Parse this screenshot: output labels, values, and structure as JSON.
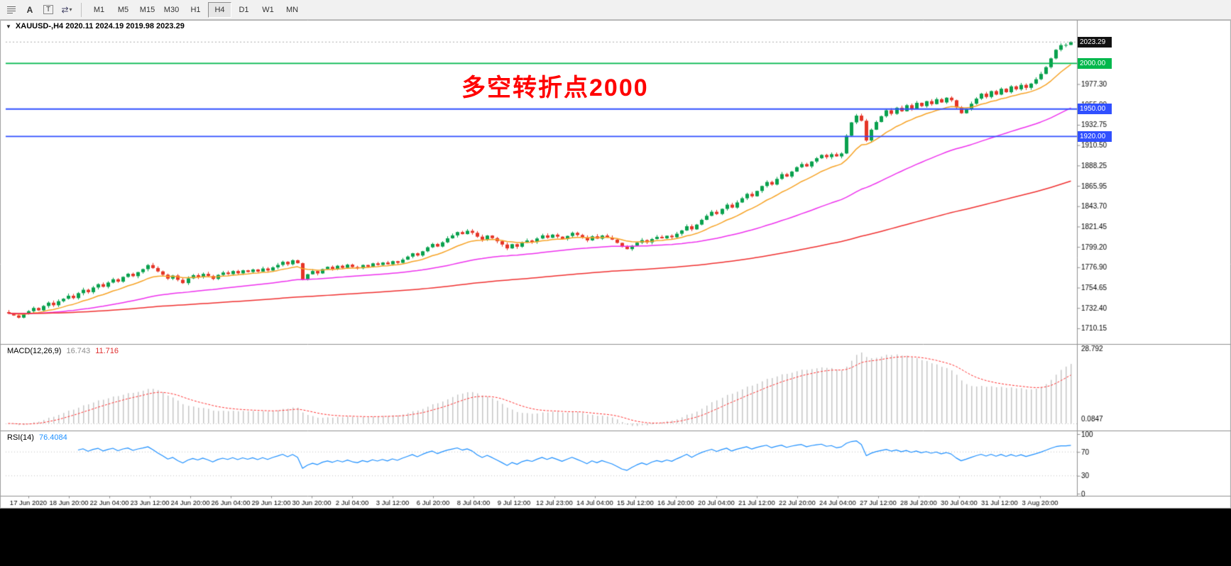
{
  "toolbar": {
    "tool_a": "A",
    "tool_t": "T",
    "timeframes": [
      {
        "label": "M1",
        "selected": false
      },
      {
        "label": "M5",
        "selected": false
      },
      {
        "label": "M15",
        "selected": false
      },
      {
        "label": "M30",
        "selected": false
      },
      {
        "label": "H1",
        "selected": false
      },
      {
        "label": "H4",
        "selected": true
      },
      {
        "label": "D1",
        "selected": false
      },
      {
        "label": "W1",
        "selected": false
      },
      {
        "label": "MN",
        "selected": false
      }
    ]
  },
  "chart": {
    "title": "XAUUSD-,H4  2020.11 2024.19 2019.98 2023.29",
    "annotation": {
      "text": "多空转折点2000",
      "color": "#FF0000"
    },
    "levels": [
      {
        "label": "2023.29",
        "value": 2023.29,
        "bg": "#111111",
        "line": "dotted",
        "color": "#aaaaaa"
      },
      {
        "label": "2000.00",
        "value": 2000.0,
        "bg": "#00B84C",
        "line": "solid",
        "color": "#00B84C"
      },
      {
        "label": "1950.00",
        "value": 1950.0,
        "bg": "#3050FF",
        "line": "solid",
        "color": "#3050FF"
      },
      {
        "label": "1920.00",
        "value": 1920.0,
        "bg": "#3050FF",
        "line": "solid",
        "color": "#3050FF"
      }
    ]
  },
  "indicators": {
    "macd": {
      "name": "MACD(12,26,9)",
      "main_value": "16.743",
      "signal_value": "11.716",
      "axis_max": "28.792",
      "axis_min": "0.0847"
    },
    "rsi": {
      "name": "RSI(14)",
      "value": "76.4084",
      "axis_labels": [
        "100",
        "70",
        "30",
        "0"
      ],
      "levels": [
        70,
        30
      ]
    }
  },
  "chart_data": {
    "type": "candlestick",
    "symbol": "XAUUSD-",
    "timeframe": "H4",
    "price_scale": {
      "min": 1693,
      "max": 2046
    },
    "price_ticks": [
      "1999.55",
      "1977.30",
      "1955.00",
      "1932.75",
      "1910.50",
      "1888.25",
      "1865.95",
      "1843.70",
      "1821.45",
      "1799.20",
      "1776.90",
      "1754.65",
      "1732.40",
      "1710.15"
    ],
    "time_ticks": [
      "17 Jun 2020",
      "18 Jun 20:00",
      "22 Jun 04:00",
      "23 Jun 12:00",
      "24 Jun 20:00",
      "26 Jun 04:00",
      "29 Jun 12:00",
      "30 Jun 20:00",
      "2 Jul 04:00",
      "3 Jul 12:00",
      "6 Jul 20:00",
      "8 Jul 04:00",
      "9 Jul 12:00",
      "12 Jul 23:00",
      "14 Jul 04:00",
      "15 Jul 12:00",
      "16 Jul 20:00",
      "20 Jul 04:00",
      "21 Jul 12:00",
      "22 Jul 20:00",
      "24 Jul 04:00",
      "27 Jul 12:00",
      "28 Jul 20:00",
      "30 Jul 04:00",
      "31 Jul 12:00",
      "3 Aug 20:00"
    ],
    "closes": [
      1726.5,
      1724.2,
      1721.8,
      1725.6,
      1728.9,
      1732.4,
      1729.8,
      1734.6,
      1738.2,
      1735.4,
      1739.8,
      1742.5,
      1745.8,
      1743.2,
      1748.6,
      1752.3,
      1749.7,
      1754.8,
      1758.4,
      1755.6,
      1760.2,
      1763.8,
      1761.2,
      1766.4,
      1769.8,
      1767.2,
      1771.6,
      1774.9,
      1779.3,
      1776.1,
      1772.4,
      1768.8,
      1764.5,
      1767.9,
      1763.2,
      1759.6,
      1764.8,
      1768.3,
      1766.1,
      1769.7,
      1767.4,
      1764.2,
      1768.6,
      1771.2,
      1769.5,
      1772.8,
      1770.3,
      1773.6,
      1771.8,
      1774.5,
      1772.2,
      1775.6,
      1773.4,
      1776.8,
      1779.5,
      1782.9,
      1780.2,
      1784.6,
      1781.4,
      1763.5,
      1769.3,
      1772.8,
      1770.2,
      1774.9,
      1777.4,
      1775.1,
      1778.6,
      1776.3,
      1779.8,
      1777.2,
      1775.8,
      1779.4,
      1777.6,
      1781.2,
      1779.5,
      1782.1,
      1780.2,
      1783.6,
      1781.8,
      1785.3,
      1788.6,
      1792.2,
      1789.8,
      1794.4,
      1798.8,
      1802.4,
      1799.6,
      1804.2,
      1808.6,
      1811.8,
      1815.4,
      1813.2,
      1816.8,
      1814.6,
      1810.4,
      1807.2,
      1811.6,
      1808.8,
      1805.4,
      1801.8,
      1797.6,
      1802.2,
      1799.4,
      1803.8,
      1806.2,
      1804.6,
      1808.4,
      1811.8,
      1809.2,
      1812.6,
      1810.4,
      1807.8,
      1811.2,
      1814.6,
      1812.2,
      1809.6,
      1806.4,
      1810.8,
      1808.2,
      1811.6,
      1809.4,
      1807.2,
      1803.6,
      1799.2,
      1796.8,
      1800.4,
      1803.8,
      1806.6,
      1804.2,
      1807.8,
      1810.2,
      1808.6,
      1811.4,
      1809.8,
      1813.6,
      1817.2,
      1821.8,
      1818.4,
      1823.6,
      1828.8,
      1833.2,
      1837.6,
      1835.2,
      1840.8,
      1845.4,
      1842.2,
      1847.8,
      1852.4,
      1857.2,
      1854.6,
      1860.4,
      1865.8,
      1870.2,
      1867.4,
      1873.6,
      1878.8,
      1876.2,
      1881.6,
      1886.4,
      1889.8,
      1887.2,
      1892.6,
      1896.2,
      1899.8,
      1897.4,
      1900.6,
      1898.2,
      1901.4,
      1920.8,
      1935.4,
      1942.8,
      1937.2,
      1915.6,
      1927.4,
      1935.8,
      1942.2,
      1948.6,
      1944.8,
      1951.4,
      1947.6,
      1954.2,
      1950.4,
      1956.8,
      1953.2,
      1958.6,
      1955.4,
      1960.8,
      1957.2,
      1962.4,
      1959.6,
      1951.8,
      1945.4,
      1950.2,
      1955.8,
      1961.4,
      1966.8,
      1963.2,
      1969.6,
      1965.8,
      1972.2,
      1968.4,
      1974.8,
      1971.6,
      1976.4,
      1973.2,
      1977.8,
      1982.6,
      1988.4,
      1995.8,
      2005.4,
      2014.8,
      2019.9,
      2020.11,
      2023.29
    ],
    "last_candle": {
      "open": 2020.11,
      "high": 2024.19,
      "low": 2019.98,
      "close": 2023.29
    },
    "moving_averages": [
      {
        "period": 13,
        "color": "#F7A325"
      },
      {
        "period": 55,
        "color": "#EE30EE"
      },
      {
        "period": 175,
        "color": "#F03030"
      }
    ],
    "macd_params": {
      "fast": 12,
      "slow": 26,
      "signal": 9
    },
    "rsi_period": 14,
    "colors": {
      "up": "#0AA14E",
      "down": "#E53528",
      "macd_hist": "#C6C6C6",
      "macd_signal": "#FF3333",
      "rsi_line": "#1E90FF",
      "axis_text": "#000000",
      "separator": "#8f8f8f"
    }
  }
}
